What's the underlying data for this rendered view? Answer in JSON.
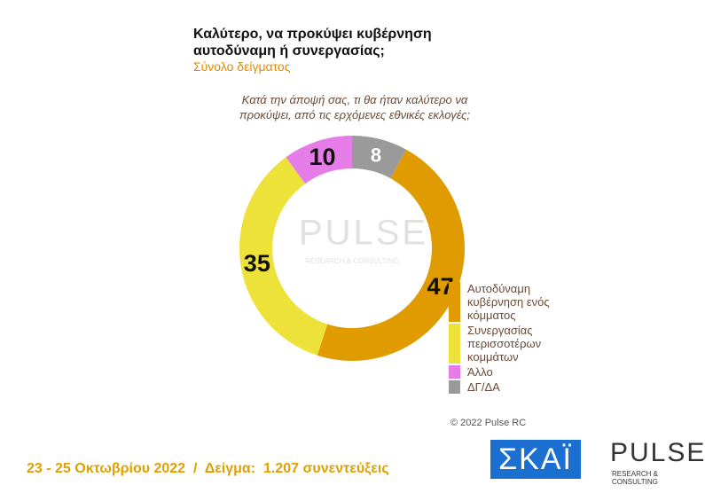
{
  "chart_data": {
    "type": "donut",
    "title": "Καλύτερο, να προκύψει κυβέρνηση αυτοδύναμη ή συνεργασίας;",
    "subtitle": "Σύνολο δείγματος",
    "question": "Κατά την άποψή σας, τι θα ήταν καλύτερο να προκύψει, από τις ερχόμενες εθνικές εκλογές;",
    "categories": [
      "Αυτοδύναμη κυβέρνηση ενός κόμματος",
      "Συνεργασίας περισσοτέρων κομμάτων",
      "Άλλο",
      "ΔΓ/ΔΑ"
    ],
    "values": [
      47,
      35,
      10,
      8
    ],
    "colors": [
      "#e09b00",
      "#ede23a",
      "#e57ce8",
      "#9a9a9a"
    ],
    "label_colors": [
      "#111111",
      "#111111",
      "#111111",
      "#ffffff"
    ],
    "legend": "right"
  },
  "copyright": "© 2022 Pulse RC",
  "footer": "23 - 25 Οκτωβρίου 2022  /  Δείγμα:  1.207 συνεντεύξεις",
  "logos": {
    "skai": "ΣΚΑΪ",
    "pulse": "PULSE",
    "pulse_sub": "RESEARCH & CONSULTING"
  }
}
